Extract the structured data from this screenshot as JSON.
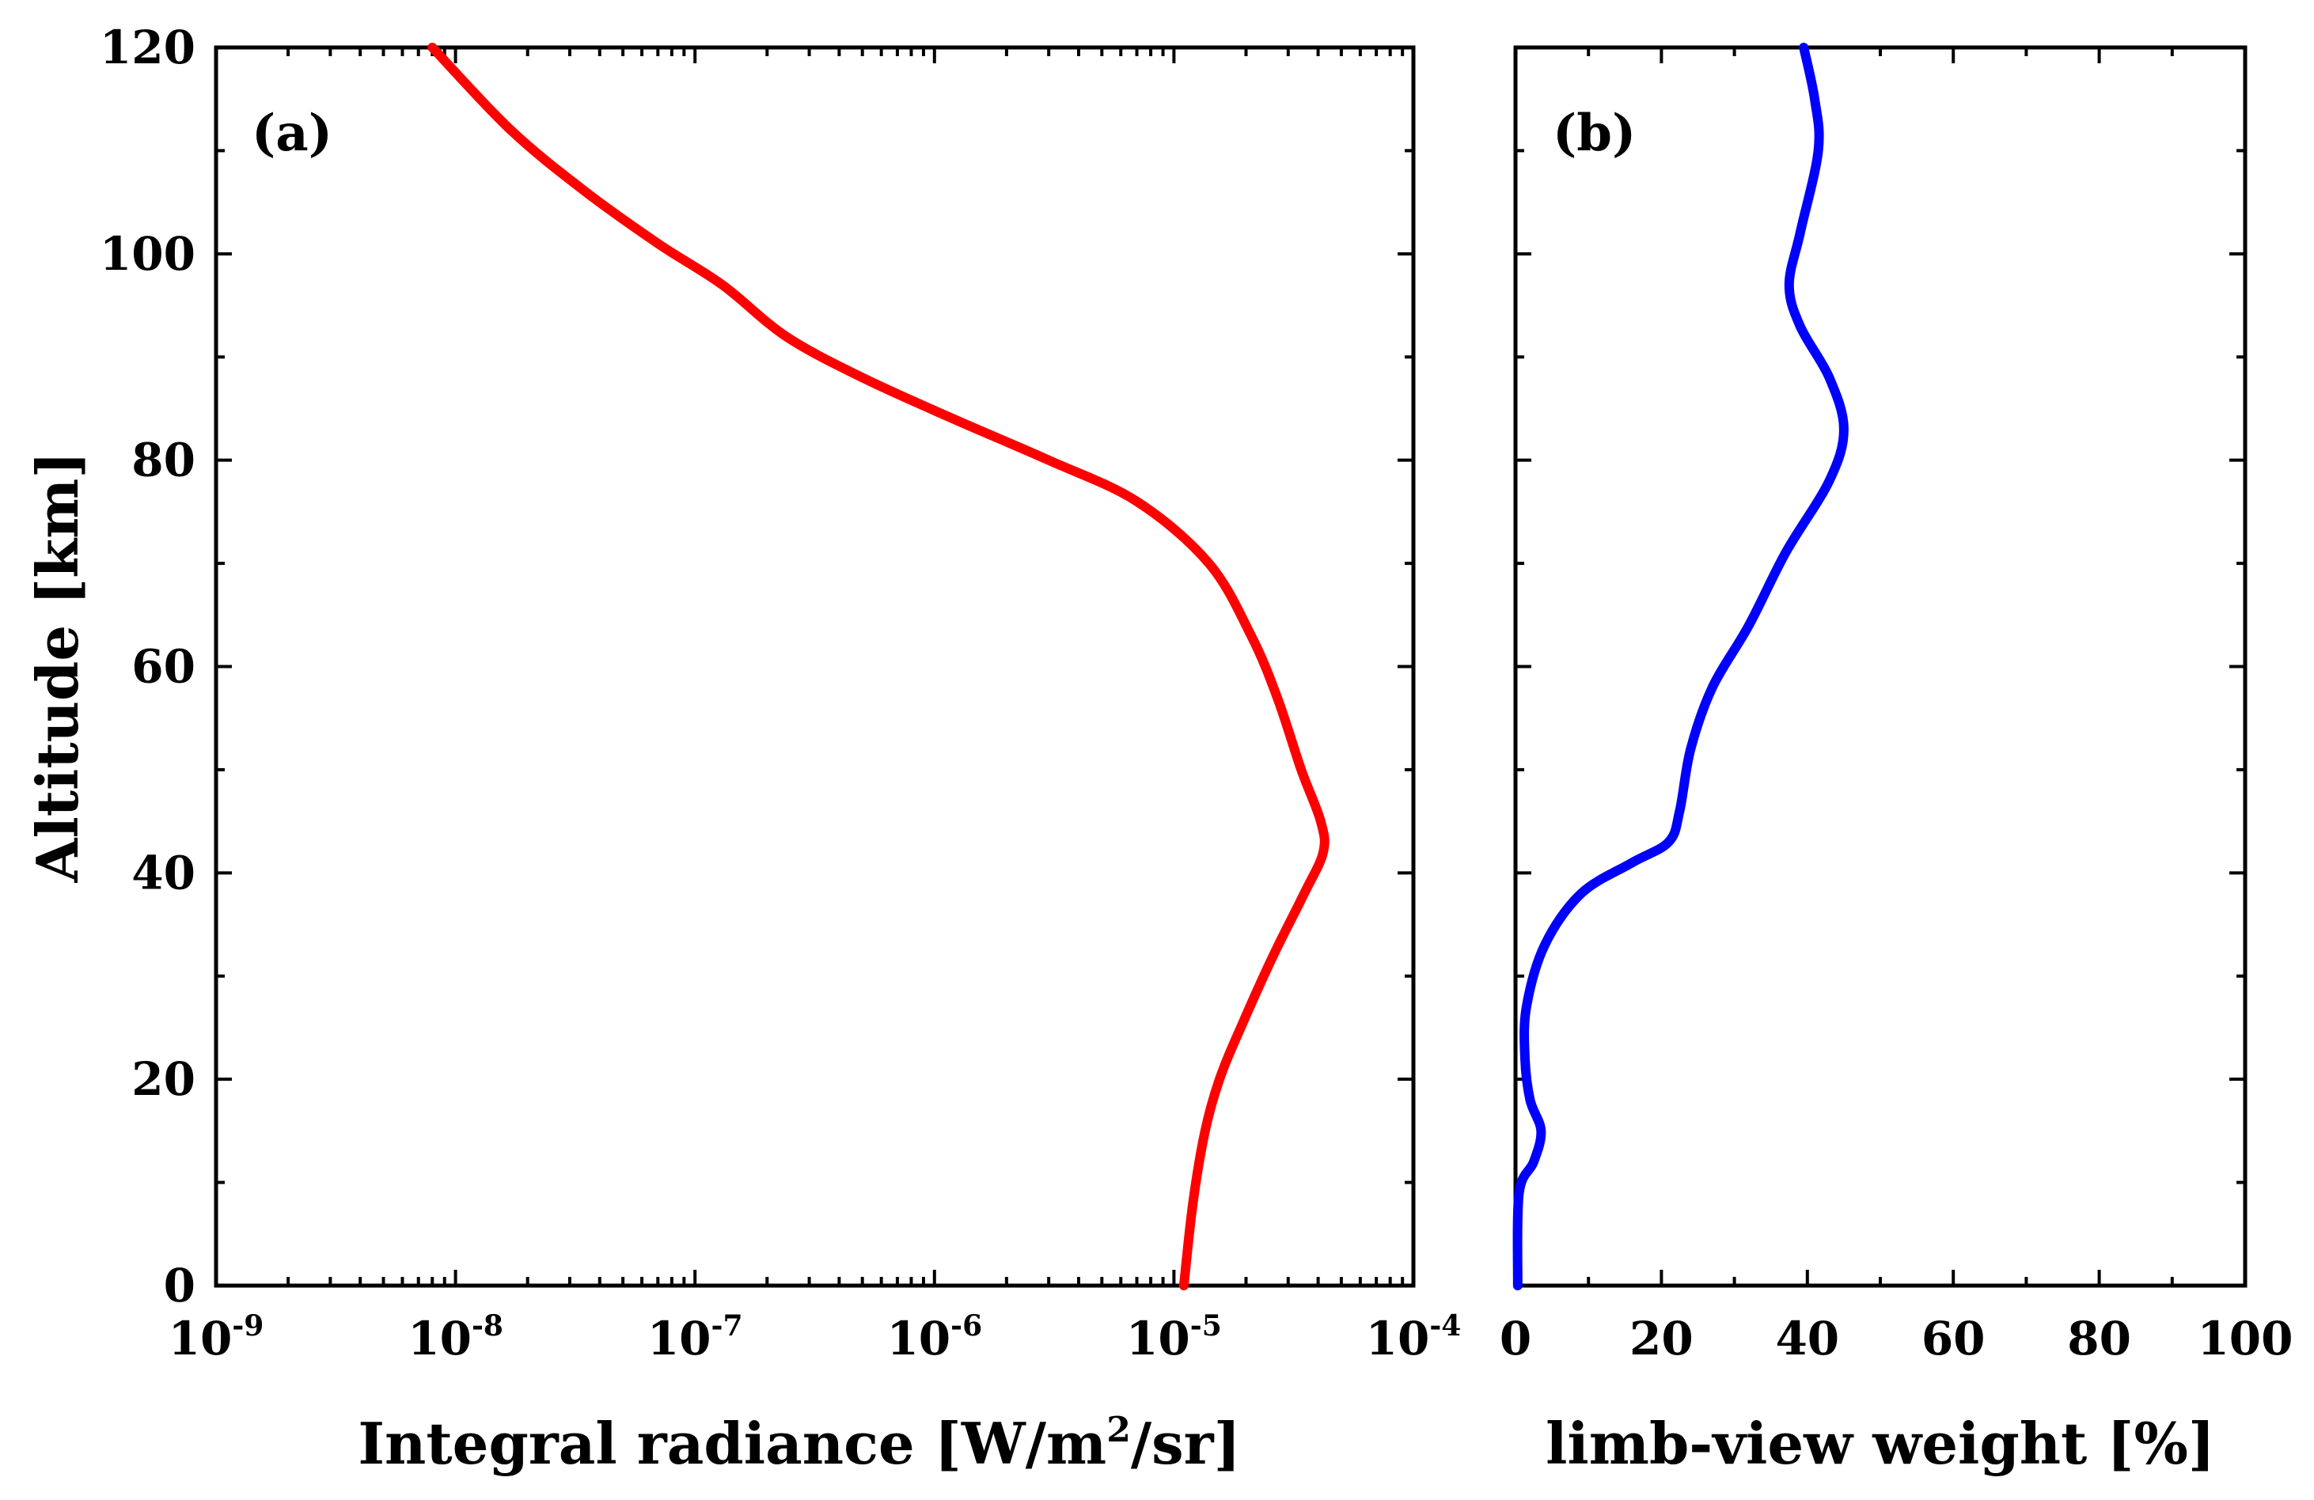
{
  "chart_data": [
    {
      "panel_label": "(a)",
      "type": "line",
      "xlabel": "Integral radiance [W/m²/sr]",
      "xlabel_parts": {
        "before": "Integral radiance [W/m",
        "superscript": "2",
        "after": "/sr]"
      },
      "ylabel": "Altitude [km]",
      "x_scale": "log",
      "xlim": [
        1e-09,
        0.0001
      ],
      "ylim": [
        0,
        120
      ],
      "x_ticks": [
        {
          "base": "10",
          "exp": "-9"
        },
        {
          "base": "10",
          "exp": "-8"
        },
        {
          "base": "10",
          "exp": "-7"
        },
        {
          "base": "10",
          "exp": "-6"
        },
        {
          "base": "10",
          "exp": "-5"
        },
        {
          "base": "10",
          "exp": "-4"
        }
      ],
      "y_ticks": [
        "0",
        "20",
        "40",
        "60",
        "80",
        "100",
        "120"
      ],
      "series": [
        {
          "name": "Integral radiance",
          "color": "#ff0000",
          "points": [
            [
              1.1e-05,
              0
            ],
            [
              1.2e-05,
              8
            ],
            [
              1.35e-05,
              15
            ],
            [
              1.55e-05,
              20
            ],
            [
              1.9e-05,
              25
            ],
            [
              2.6e-05,
              32
            ],
            [
              3.5e-05,
              38
            ],
            [
              4.2e-05,
              42
            ],
            [
              4.1e-05,
              45
            ],
            [
              3.4e-05,
              50
            ],
            [
              2.7e-05,
              57
            ],
            [
              2.1e-05,
              63
            ],
            [
              1.4e-05,
              70
            ],
            [
              7e-06,
              76
            ],
            [
              3e-06,
              80
            ],
            [
              1.2e-06,
              84
            ],
            [
              5e-07,
              88
            ],
            [
              2.4e-07,
              92
            ],
            [
              1.3e-07,
              97
            ],
            [
              7e-08,
              101
            ],
            [
              3.5e-08,
              106
            ],
            [
              1.7e-08,
              112
            ],
            [
              8e-09,
              120
            ]
          ]
        }
      ]
    },
    {
      "panel_label": "(b)",
      "type": "line",
      "xlabel": "limb-view weight [%]",
      "ylabel": "Altitude [km]",
      "xlim": [
        0,
        100
      ],
      "ylim": [
        0,
        120
      ],
      "x_ticks": [
        "0",
        "20",
        "40",
        "60",
        "80",
        "100"
      ],
      "series": [
        {
          "name": "limb-view weight",
          "color": "#0000ff",
          "points": [
            [
              0.3,
              0
            ],
            [
              0.5,
              9
            ],
            [
              2.5,
              12
            ],
            [
              3.5,
              15
            ],
            [
              2.0,
              18
            ],
            [
              1.3,
              22
            ],
            [
              1.5,
              27
            ],
            [
              4,
              33
            ],
            [
              9,
              38
            ],
            [
              16,
              41
            ],
            [
              21,
              43
            ],
            [
              22.5,
              46
            ],
            [
              24,
              52
            ],
            [
              27,
              58
            ],
            [
              32,
              64
            ],
            [
              37,
              71
            ],
            [
              43,
              78
            ],
            [
              45,
              83
            ],
            [
              43,
              88
            ],
            [
              39,
              93
            ],
            [
              37.5,
              97
            ],
            [
              39,
              102
            ],
            [
              41.5,
              110
            ],
            [
              41,
              115
            ],
            [
              39.5,
              120
            ]
          ]
        }
      ]
    }
  ]
}
